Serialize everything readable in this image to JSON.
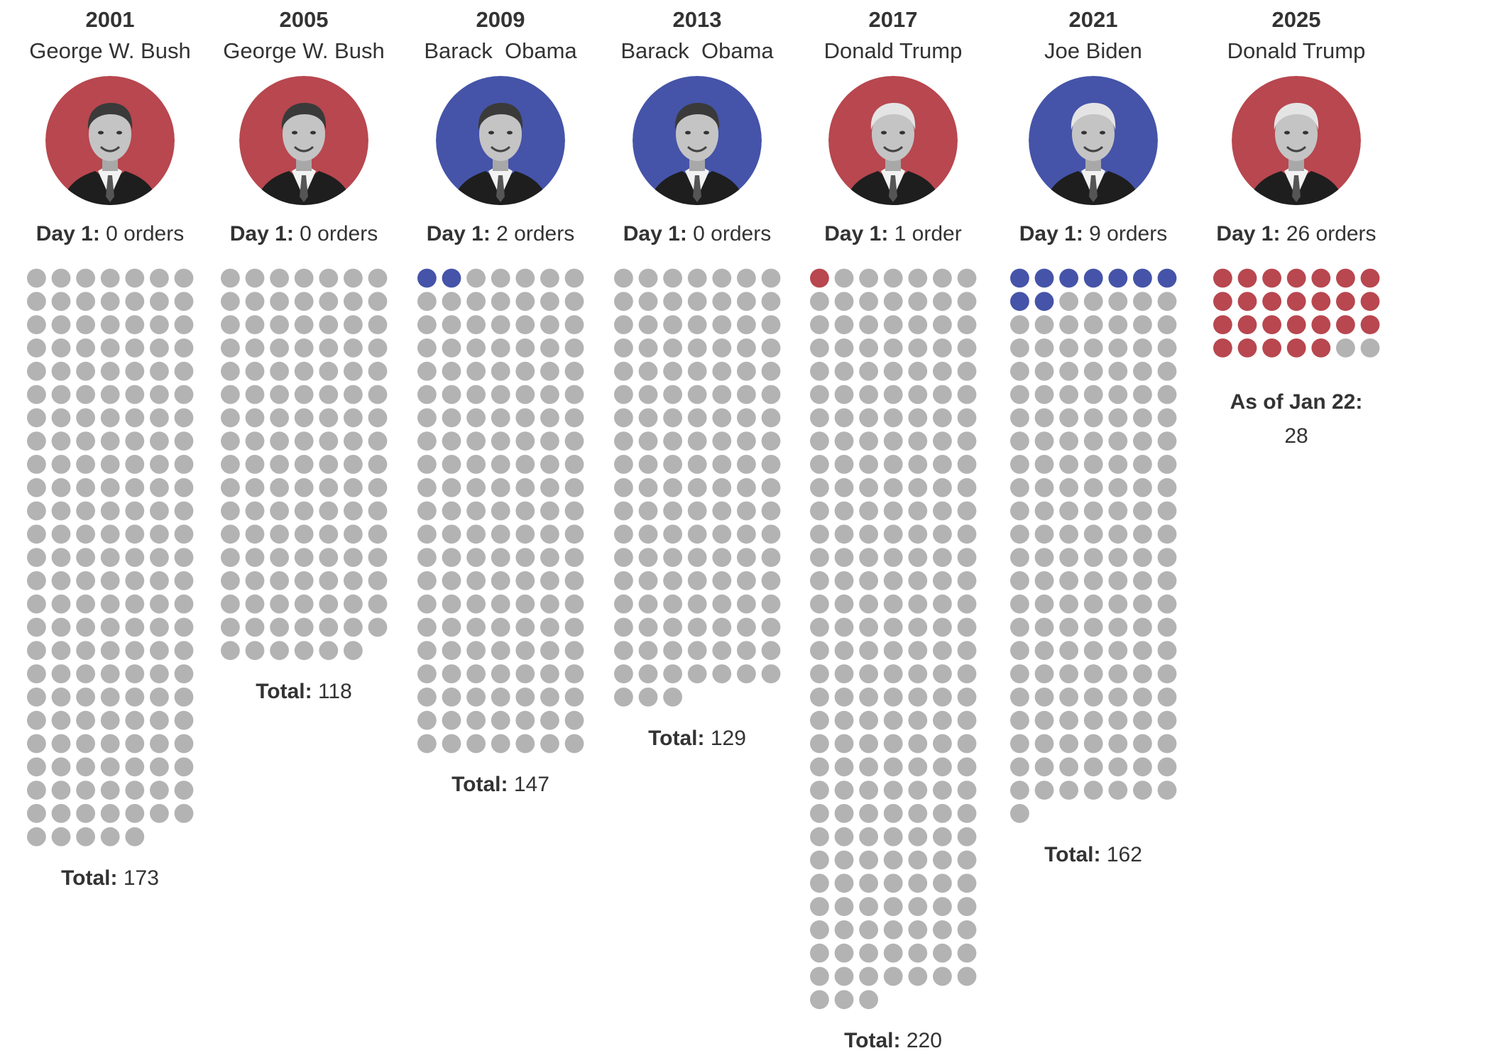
{
  "chart_data": {
    "type": "waffle",
    "title": "",
    "description_units": "executive orders",
    "colors": {
      "republican": "#b8474f",
      "democrat": "#4554a8",
      "inactive": "#b3b3b3"
    },
    "day1_label": "Day 1:",
    "series": [
      {
        "year": "2001",
        "name": "George W. Bush",
        "party": "republican",
        "day1_orders": 0,
        "day1_text": "0 orders",
        "total": 173,
        "total_label": "Total:",
        "total_text": "173",
        "columns_per_row": 7
      },
      {
        "year": "2005",
        "name": "George W. Bush",
        "party": "republican",
        "day1_orders": 0,
        "day1_text": "0 orders",
        "total": 118,
        "total_label": "Total:",
        "total_text": "118",
        "columns_per_row": 7
      },
      {
        "year": "2009",
        "name": "Barack  Obama",
        "party": "democrat",
        "day1_orders": 2,
        "day1_text": "2 orders",
        "total": 147,
        "total_label": "Total:",
        "total_text": "147",
        "columns_per_row": 7
      },
      {
        "year": "2013",
        "name": "Barack  Obama",
        "party": "democrat",
        "day1_orders": 0,
        "day1_text": "0 orders",
        "total": 129,
        "total_label": "Total:",
        "total_text": "129",
        "columns_per_row": 7
      },
      {
        "year": "2017",
        "name": "Donald Trump",
        "party": "republican",
        "day1_orders": 1,
        "day1_text": "1 order",
        "total": 220,
        "total_label": "Total:",
        "total_text": "220",
        "columns_per_row": 7
      },
      {
        "year": "2021",
        "name": "Joe Biden",
        "party": "democrat",
        "day1_orders": 9,
        "day1_text": "9 orders",
        "total": 162,
        "total_label": "Total:",
        "total_text": "162",
        "columns_per_row": 7
      },
      {
        "year": "2025",
        "name": "Donald Trump",
        "party": "republican",
        "day1_orders": 26,
        "day1_text": "26 orders",
        "total": 28,
        "total_label": "As of Jan 22:",
        "total_text": "28",
        "columns_per_row": 7
      }
    ]
  }
}
